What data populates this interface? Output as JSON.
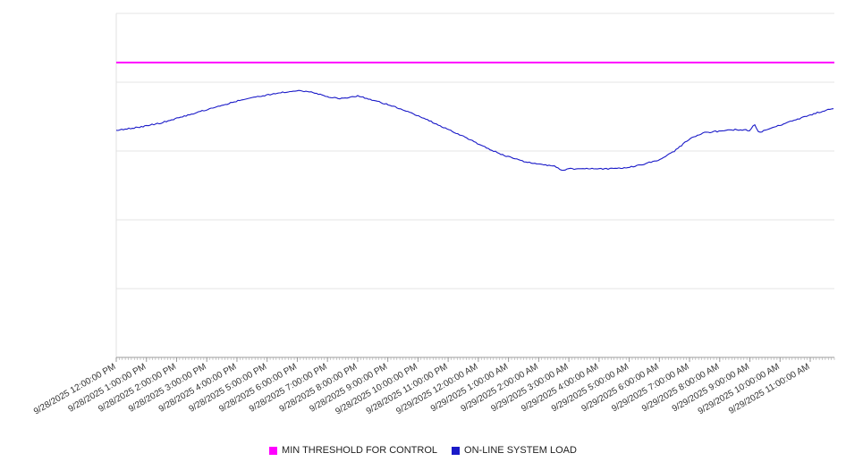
{
  "chart_data": {
    "type": "line",
    "title": "",
    "xlabel": "",
    "ylabel": "",
    "ylim": [
      0,
      100
    ],
    "grid": true,
    "y_ticks_visible": false,
    "legend_position": "bottom",
    "categories": [
      "9/28/2025 12:00:00 PM",
      "9/28/2025 1:00:00 PM",
      "9/28/2025 2:00:00 PM",
      "9/28/2025 3:00:00 PM",
      "9/28/2025 4:00:00 PM",
      "9/28/2025 5:00:00 PM",
      "9/28/2025 6:00:00 PM",
      "9/28/2025 7:00:00 PM",
      "9/28/2025 8:00:00 PM",
      "9/28/2025 9:00:00 PM",
      "9/28/2025 10:00:00 PM",
      "9/28/2025 11:00:00 PM",
      "9/29/2025 12:00:00 AM",
      "9/29/2025 1:00:00 AM",
      "9/29/2025 2:00:00 AM",
      "9/29/2025 3:00:00 AM",
      "9/29/2025 4:00:00 AM",
      "9/29/2025 5:00:00 AM",
      "9/29/2025 6:00:00 AM",
      "9/29/2025 7:00:00 AM",
      "9/29/2025 8:00:00 AM",
      "9/29/2025 9:00:00 AM",
      "9/29/2025 10:00:00 AM",
      "9/29/2025 11:00:00 AM"
    ],
    "series": [
      {
        "name": "MIN THRESHOLD FOR CONTROL",
        "type": "threshold",
        "color": "#ff00ff",
        "value": 85.7
      },
      {
        "name": "ON-LINE SYSTEM LOAD",
        "type": "line",
        "color": "#1a1ac8",
        "x": [
          0,
          0.5,
          1,
          1.5,
          2,
          2.5,
          3,
          3.5,
          4,
          4.5,
          5,
          5.5,
          6,
          6.5,
          7,
          7.5,
          8,
          8.5,
          9,
          9.5,
          10,
          10.5,
          11,
          11.5,
          12,
          12.5,
          13,
          13.5,
          14,
          14.5,
          14.8,
          15,
          15.2,
          15.5,
          16,
          16.5,
          17,
          17.5,
          18,
          18.5,
          19,
          19.5,
          20,
          20.5,
          21,
          21.15,
          21.3,
          21.5,
          22,
          22.5,
          23,
          23.5,
          23.8
        ],
        "values": [
          66,
          66.6,
          67.3,
          68.2,
          69.5,
          70.8,
          72,
          73.3,
          74.5,
          75.5,
          76.3,
          77,
          77.6,
          77.1,
          75.8,
          75.2,
          76,
          74.8,
          73.5,
          72,
          70.3,
          68.3,
          66.3,
          64.3,
          62,
          60,
          58.3,
          57,
          56.2,
          55.6,
          54.4,
          55,
          54.7,
          55,
          54.8,
          54.9,
          55.3,
          56.2,
          57.5,
          60,
          63.5,
          65.3,
          65.8,
          66.2,
          66,
          67.8,
          65.3,
          66,
          67.5,
          69,
          70.5,
          71.8,
          72.4
        ]
      }
    ]
  },
  "legend": {
    "threshold_label": "MIN THRESHOLD FOR CONTROL",
    "load_label": "ON-LINE SYSTEM LOAD"
  },
  "colors": {
    "gridline": "#e6e6e6",
    "axis": "#999999",
    "tick": "#aaaaaa",
    "tick_label": "#333333",
    "background": "#ffffff"
  }
}
